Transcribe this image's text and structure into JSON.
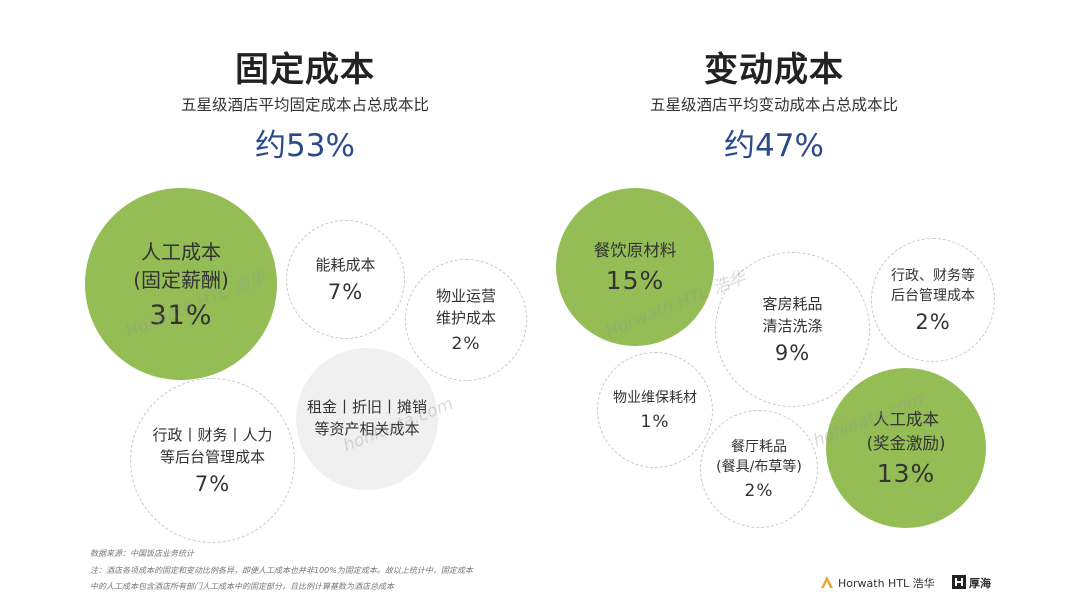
{
  "chart_data": [
    {
      "type": "bubble",
      "title": "固定成本",
      "subtitle": "五星级酒店平均固定成本占总成本比",
      "total_share": "约53%",
      "categories": [
        "人工成本\n(固定薪酬)",
        "能耗成本",
        "物业运营\n维护成本",
        "租金丨折旧丨摊销\n等资产相关成本",
        "行政丨财务丨人力\n等后台管理成本"
      ],
      "values": [
        31,
        7,
        2,
        null,
        7
      ],
      "value_labels": [
        "31%",
        "7%",
        "2%",
        "",
        "7%"
      ],
      "styles": [
        "green",
        "outline",
        "outline",
        "gray",
        "outline"
      ]
    },
    {
      "type": "bubble",
      "title": "变动成本",
      "subtitle": "五星级酒店平均变动成本占总成本比",
      "total_share": "约47%",
      "categories": [
        "餐饮原材料",
        "客房耗品\n清洁洗涤",
        "行政、财务等\n后台管理成本",
        "物业维保耗材",
        "餐厅耗品\n(餐具/布草等)",
        "人工成本\n(奖金激励)"
      ],
      "values": [
        15,
        9,
        2,
        1,
        2,
        13
      ],
      "value_labels": [
        "15%",
        "9%",
        "2%",
        "1%",
        "2%",
        "13%"
      ],
      "styles": [
        "green",
        "outline",
        "outline",
        "outline",
        "outline",
        "green"
      ]
    }
  ],
  "colors": {
    "green": "#94bd56",
    "title_blue": "#2b4a8c",
    "gray_bubble": "#f0f0f0"
  },
  "footer": {
    "source": "数据来源：中国饭店业务统计",
    "note1": "注：酒店各项成本的固定和变动比例各异，即便人工成本也并非100%为固定成本。故以上统计中，固定成本",
    "note2": "中的人工成本包含酒店所有部门人工成本中的固定部分，且比例计算基数为酒店总成本"
  },
  "brands": {
    "horwath": "Horwath HTL 浩华",
    "hohi": "厚海"
  },
  "watermarks": {
    "w1": "Horwath HTL 浩华",
    "w2": "hohidata.com",
    "w3": "Horwath HTL 浩华",
    "w4": "hohidata.com"
  },
  "icons": {
    "horwath_logo": "triangle-logo-icon",
    "hohi_logo": "hh-logo-icon"
  }
}
